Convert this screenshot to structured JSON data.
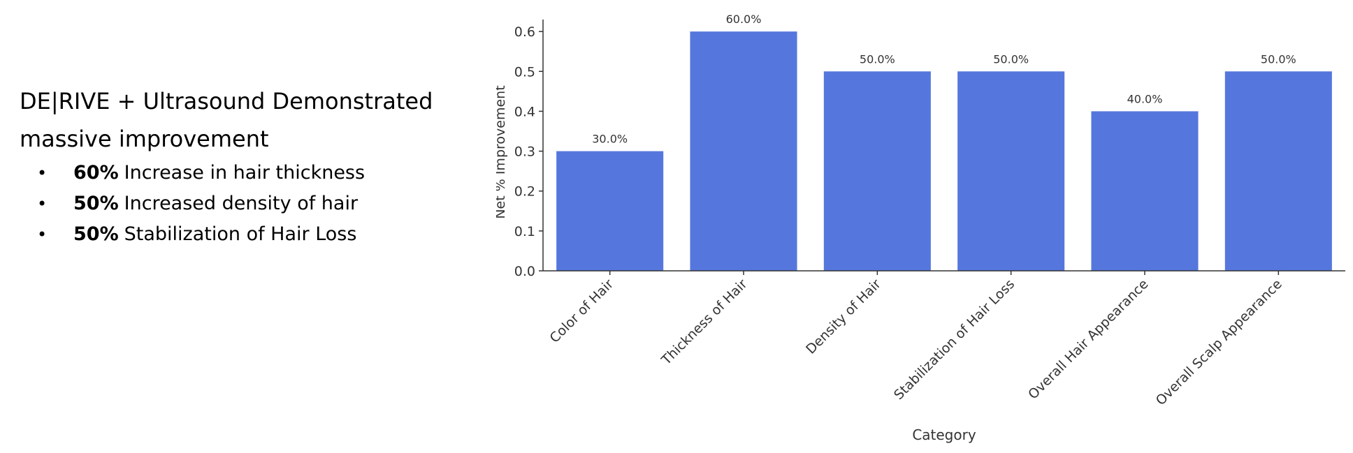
{
  "slide": {
    "headline": "DE|RIVE + Ultrasound Demonstrated massive improvement",
    "bullets": [
      {
        "strong": "60%",
        "text": "Increase in hair thickness"
      },
      {
        "strong": "50%",
        "text": "Increased density of hair"
      },
      {
        "strong": "50%",
        "text": "Stabilization of Hair Loss"
      }
    ]
  },
  "chart_data": {
    "type": "bar",
    "categories": [
      "Color of Hair",
      "Thickness of Hair",
      "Density of Hair",
      "Stabilization of Hair Loss",
      "Overall Hair Appearance",
      "Overall Scalp Appearance"
    ],
    "values": [
      0.3,
      0.6,
      0.5,
      0.5,
      0.4,
      0.5
    ],
    "data_labels": [
      "30.0%",
      "60.0%",
      "50.0%",
      "50.0%",
      "40.0%",
      "50.0%"
    ],
    "xlabel": "Category",
    "ylabel": "Net % Improvement",
    "ylim": [
      0,
      0.63
    ],
    "yticks": [
      0.0,
      0.1,
      0.2,
      0.3,
      0.4,
      0.5,
      0.6
    ],
    "ytick_labels": [
      "0.0",
      "0.1",
      "0.2",
      "0.3",
      "0.4",
      "0.5",
      "0.6"
    ],
    "bar_color": "#5577dd",
    "grid": false
  }
}
